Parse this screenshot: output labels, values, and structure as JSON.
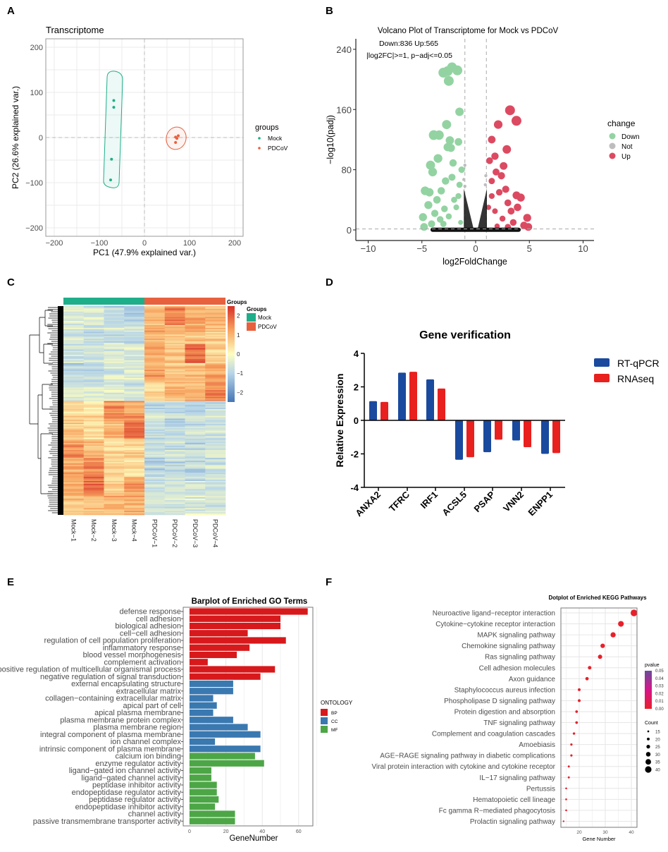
{
  "panel_letters": {
    "a": "A",
    "b": "B",
    "c": "C",
    "d": "D",
    "e": "E",
    "f": "F"
  },
  "colors": {
    "mock": "#1FAE8A",
    "pdcov": "#E8613E",
    "down": "#93D3A2",
    "not": "#BDBDBD",
    "up": "#DC4A62",
    "rtqpcr": "#1A4A9E",
    "rnaseq": "#E8201E",
    "bp": "#D7191C",
    "cc": "#3A78B0",
    "mf": "#4DA646"
  },
  "chart_data": [
    {
      "type": "scatter",
      "title": "Transcriptome",
      "xlabel": "PC1 (47.9% explained var.)",
      "ylabel": "PC2 (26.6% explained var.)",
      "xlim": [
        -220,
        220
      ],
      "ylim": [
        -220,
        220
      ],
      "xticks": [
        "−200",
        "−100",
        "0",
        "100",
        "200"
      ],
      "yticks": [
        "200",
        "100",
        "0",
        "−100",
        "−200"
      ],
      "grid": true,
      "legend_position": "right",
      "legend_title": "groups",
      "series": [
        {
          "name": "Mock",
          "points": [
            [
              -68,
              82
            ],
            [
              -68,
              67
            ],
            [
              -73,
              -48
            ],
            [
              -75,
              -94
            ]
          ]
        },
        {
          "name": "PDCoV",
          "points": [
            [
              69,
              1
            ],
            [
              75,
              4
            ],
            [
              72,
              -2
            ],
            [
              69,
              -11
            ]
          ]
        }
      ]
    },
    {
      "type": "scatter",
      "title": "Volcano Plot of Transcriptome for Mock vs PDCoV",
      "annotation": [
        "Down:836 Up:565",
        "|log2FC|>=1, p−adj<=0.05"
      ],
      "xlabel": "log2FoldChange",
      "ylabel": "−log10(padj)",
      "xlim": [
        -11,
        11
      ],
      "ylim": [
        -5,
        250
      ],
      "xticks": [
        "−10",
        "−5",
        "0",
        "5",
        "10"
      ],
      "yticks": [
        "240",
        "160",
        "80",
        "0"
      ],
      "thresholds": {
        "log2fc": 1,
        "padj_line": 1.3
      },
      "legend_title": "change",
      "legend_position": "right",
      "series": [
        {
          "name": "Down",
          "points": [
            [
              -2.2,
              216
            ],
            [
              -3,
              209
            ],
            [
              -2.6,
              211
            ],
            [
              -1.7,
              212
            ],
            [
              -2.5,
              198
            ],
            [
              -1.5,
              157
            ],
            [
              -2.7,
              140
            ],
            [
              -3.9,
              126
            ],
            [
              -3.4,
              126
            ],
            [
              -2.4,
              119
            ],
            [
              -1.6,
              117
            ],
            [
              -2.6,
              110
            ],
            [
              -2.3,
              109
            ],
            [
              -3.5,
              95
            ],
            [
              -4.2,
              86
            ],
            [
              -4,
              77
            ],
            [
              -2.1,
              89
            ],
            [
              -2.8,
              65
            ],
            [
              -4.7,
              52
            ],
            [
              -4.3,
              50
            ],
            [
              -3.2,
              52
            ],
            [
              -4.4,
              33
            ],
            [
              -4.9,
              17
            ],
            [
              -4.8,
              4
            ],
            [
              -3.8,
              22
            ],
            [
              -2,
              40
            ],
            [
              -1.5,
              60
            ],
            [
              -1.3,
              80
            ],
            [
              -1.8,
              30
            ],
            [
              -2.5,
              18
            ],
            [
              -3,
              8
            ],
            [
              -1.4,
              10
            ],
            [
              -3.6,
              40
            ],
            [
              -2.2,
              70
            ],
            [
              -4.1,
              8
            ],
            [
              -3.3,
              14
            ],
            [
              -1.6,
              45
            ],
            [
              -2.9,
              28
            ]
          ]
        },
        {
          "name": "Not",
          "points": [
            [
              -1.0,
              86
            ],
            [
              -1.1,
              67
            ],
            [
              -1.0,
              58
            ],
            [
              0.95,
              72
            ],
            [
              0.9,
              60
            ]
          ]
        },
        {
          "name": "Up",
          "points": [
            [
              3.2,
              159
            ],
            [
              3.8,
              145
            ],
            [
              2.1,
              140
            ],
            [
              1.5,
              120
            ],
            [
              2.9,
              107
            ],
            [
              1.8,
              98
            ],
            [
              1.3,
              92
            ],
            [
              2.6,
              85
            ],
            [
              1.9,
              77
            ],
            [
              2.4,
              72
            ],
            [
              1.5,
              65
            ],
            [
              2.8,
              54
            ],
            [
              2.2,
              50
            ],
            [
              3.8,
              46
            ],
            [
              4.2,
              43
            ],
            [
              3,
              36
            ],
            [
              1.5,
              45
            ],
            [
              3.3,
              25
            ],
            [
              4.8,
              16
            ],
            [
              4.5,
              6
            ],
            [
              3.5,
              10
            ],
            [
              2.5,
              15
            ],
            [
              1.8,
              25
            ],
            [
              2,
              5
            ],
            [
              3.9,
              30
            ],
            [
              1.2,
              30
            ],
            [
              4.9,
              4
            ],
            [
              3,
              4
            ]
          ]
        }
      ]
    },
    {
      "type": "heatmap",
      "columns": [
        "Mock−1",
        "Mock−2",
        "Mock−3",
        "Mock−4",
        "PDCoV−1",
        "PDCoV−2",
        "PDCoV−3",
        "PDCoV−4"
      ],
      "column_groups": [
        "Mock",
        "Mock",
        "Mock",
        "Mock",
        "PDCoV",
        "PDCoV",
        "PDCoV",
        "PDCoV"
      ],
      "annotation_title": "Groups",
      "legend_title": "Groups",
      "legend": [
        "Mock",
        "PDCoV"
      ],
      "colorbar_ticks": [
        "2",
        "1",
        "0",
        "−1",
        "−2"
      ],
      "colorbar_range": [
        -2.5,
        2.5
      ],
      "row_cluster_means": [
        [
          -0.5,
          -0.6,
          -0.9,
          -1.1,
          0.9,
          1.6,
          1.0,
          0.9
        ],
        [
          -0.6,
          -0.8,
          -0.7,
          -0.8,
          1.1,
          0.9,
          1.0,
          0.7
        ],
        [
          -0.7,
          -0.7,
          -0.6,
          -0.6,
          1.0,
          0.6,
          1.7,
          0.5
        ],
        [
          -1.0,
          -1.0,
          -0.6,
          -0.5,
          1.2,
          0.8,
          0.8,
          1.2
        ],
        [
          -0.6,
          -0.5,
          -0.5,
          -0.7,
          0.5,
          0.9,
          1.0,
          1.6
        ],
        [
          0.5,
          0.4,
          1.5,
          1.2,
          -0.8,
          -0.9,
          -0.8,
          -0.6
        ],
        [
          0.7,
          0.4,
          1.0,
          1.8,
          -0.8,
          -0.9,
          -0.7,
          -0.7
        ],
        [
          1.4,
          0.9,
          0.4,
          0.6,
          -0.8,
          -0.8,
          -0.9,
          -0.7
        ],
        [
          1.2,
          1.6,
          0.6,
          0.4,
          -0.9,
          -0.8,
          -0.8,
          -0.7
        ],
        [
          1.0,
          1.7,
          0.5,
          1.2,
          -0.8,
          -0.7,
          -0.7,
          -0.7
        ],
        [
          0.7,
          0.8,
          1.0,
          1.1,
          -0.7,
          -0.6,
          -0.6,
          -0.6
        ]
      ]
    },
    {
      "type": "bar",
      "title": "Gene verification",
      "ylabel": "Relative Expression",
      "xlabel": "",
      "ylim": [
        -4,
        4
      ],
      "yticks": [
        "4",
        "2",
        "0",
        "-2",
        "-4"
      ],
      "categories": [
        "ANXA2",
        "TFRC",
        "IRF1",
        "ACSL5",
        "PSAP",
        "VNN2",
        "ENPP1"
      ],
      "legend_position": "right",
      "series": [
        {
          "name": "RT-qPCR",
          "values": [
            1.15,
            2.85,
            2.45,
            -2.35,
            -1.9,
            -1.2,
            -2.0
          ]
        },
        {
          "name": "RNAseq",
          "values": [
            1.1,
            2.9,
            1.9,
            -2.2,
            -1.15,
            -1.6,
            -1.95
          ]
        }
      ]
    },
    {
      "type": "bar",
      "orientation": "horizontal",
      "title": "Barplot of Enriched GO Terms",
      "xlabel": "GeneNumber",
      "xlim": [
        0,
        70
      ],
      "xticks": [
        "0",
        "20",
        "40",
        "60"
      ],
      "legend_title": "ONTOLOGY",
      "legend": [
        "BP",
        "CC",
        "MF"
      ],
      "categories": [
        "defense response",
        "cell adhesion",
        "biological adhesion",
        "cell−cell adhesion",
        "regulation of cell population proliferation",
        "inflammatory response",
        "blood vessel morphogenesis",
        "complement activation",
        "positive regulation of multicellular organismal process",
        "negative regulation of signal transduction",
        "external encapsulating structure",
        "extracellular matrix",
        "collagen−containing extracellular matrix",
        "apical part of cell",
        "apical plasma membrane",
        "plasma membrane protein complex",
        "plasma membrane region",
        "integral component of plasma membrane",
        "ion channel complex",
        "intrinsic component of plasma membrane",
        "calcium ion binding",
        "enzyme regulator activity",
        "ligand−gated ion channel activity",
        "ligand−gated channel activity",
        "peptidase inhibitor activity",
        "endopeptidase regulator activity",
        "peptidase regulator activity",
        "endopeptidase inhibitor activity",
        "channel activity",
        "passive transmembrane transporter activity"
      ],
      "values": [
        65,
        50,
        50,
        32,
        53,
        33,
        26,
        10,
        47,
        39,
        24,
        24,
        13,
        15,
        13,
        24,
        32,
        39,
        14,
        39,
        36,
        41,
        12,
        12,
        15,
        15,
        16,
        14,
        25,
        25
      ],
      "ontology": [
        "BP",
        "BP",
        "BP",
        "BP",
        "BP",
        "BP",
        "BP",
        "BP",
        "BP",
        "BP",
        "CC",
        "CC",
        "CC",
        "CC",
        "CC",
        "CC",
        "CC",
        "CC",
        "CC",
        "CC",
        "MF",
        "MF",
        "MF",
        "MF",
        "MF",
        "MF",
        "MF",
        "MF",
        "MF",
        "MF"
      ]
    },
    {
      "type": "scatter",
      "title": "Dotplot of Enriched KEGG Pathways",
      "xlabel": "Gene Number",
      "xlim": [
        13,
        42
      ],
      "xticks": [
        "20",
        "30",
        "40"
      ],
      "categories": [
        "Neuroactive ligand−receptor interaction",
        "Cytokine−cytokine receptor interaction",
        "MAPK signaling pathway",
        "Chemokine signaling pathway",
        "Ras signaling pathway",
        "Cell adhesion molecules",
        "Axon guidance",
        "Staphylococcus aureus infection",
        "Phospholipase D signaling pathway",
        "Protein digestion and absorption",
        "TNF signaling pathway",
        "Complement and coagulation cascades",
        "Amoebiasis",
        "AGE−RAGE signaling pathway in diabetic complications",
        "Viral protein interaction with cytokine and cytokine receptor",
        "IL−17 signaling pathway",
        "Pertussis",
        "Hematopoietic cell lineage",
        "Fc gamma R−mediated phagocytosis",
        "Prolactin signaling pathway"
      ],
      "values": [
        41,
        36,
        33,
        29,
        28,
        24,
        23,
        20,
        20,
        19,
        19,
        18,
        17,
        17,
        16,
        16,
        15,
        15,
        15,
        14
      ],
      "pvalue_legend_title": "pvalue",
      "pvalue_ticks": [
        "0.05",
        "0.04",
        "0.03",
        "0.02",
        "0.01",
        "0.00"
      ],
      "count_legend_title": "Count",
      "count_legend": [
        15,
        20,
        25,
        30,
        35,
        40
      ]
    }
  ]
}
